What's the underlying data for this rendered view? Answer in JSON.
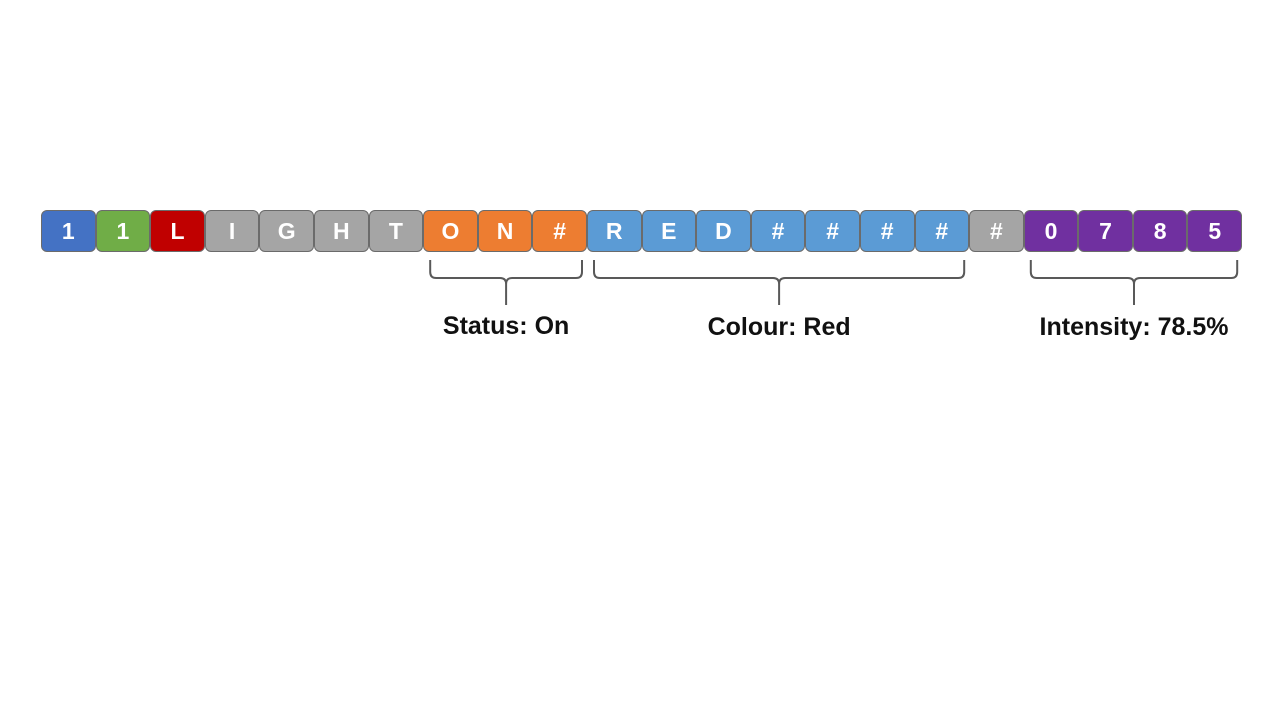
{
  "colors": {
    "blue": "#4472c4",
    "green": "#70ad47",
    "red": "#c00000",
    "gray": "#a5a5a5",
    "orange": "#ed7d31",
    "lightblue": "#5b9bd5",
    "purple": "#7030a0"
  },
  "cells": [
    {
      "char": "1",
      "color": "blue"
    },
    {
      "char": "1",
      "color": "green"
    },
    {
      "char": "L",
      "color": "red"
    },
    {
      "char": "I",
      "color": "gray"
    },
    {
      "char": "G",
      "color": "gray"
    },
    {
      "char": "H",
      "color": "gray"
    },
    {
      "char": "T",
      "color": "gray"
    },
    {
      "char": "O",
      "color": "orange"
    },
    {
      "char": "N",
      "color": "orange"
    },
    {
      "char": "#",
      "color": "orange"
    },
    {
      "char": "R",
      "color": "lightblue"
    },
    {
      "char": "E",
      "color": "lightblue"
    },
    {
      "char": "D",
      "color": "lightblue"
    },
    {
      "char": "#",
      "color": "lightblue"
    },
    {
      "char": "#",
      "color": "lightblue"
    },
    {
      "char": "#",
      "color": "lightblue"
    },
    {
      "char": "#",
      "color": "lightblue"
    },
    {
      "char": "#",
      "color": "gray"
    },
    {
      "char": "0",
      "color": "purple"
    },
    {
      "char": "7",
      "color": "purple"
    },
    {
      "char": "8",
      "color": "purple"
    },
    {
      "char": "5",
      "color": "purple"
    }
  ],
  "groups": [
    {
      "name": "status",
      "start": 7,
      "end": 9,
      "label": "Status: On"
    },
    {
      "name": "colour",
      "start": 10,
      "end": 16,
      "label": "Colour: Red"
    },
    {
      "name": "intensity",
      "start": 18,
      "end": 21,
      "label": "Intensity: 78.5%"
    }
  ]
}
